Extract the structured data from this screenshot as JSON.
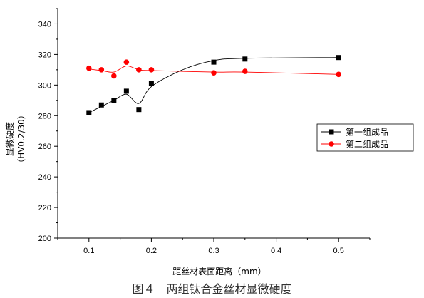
{
  "chart_data": {
    "type": "line",
    "xlabel": "距丝材表面距离（mm）",
    "ylabel_line1": "显微硬度",
    "ylabel_line2": "（HV0.2/30）",
    "xlim": [
      0.05,
      0.55
    ],
    "ylim": [
      200,
      350
    ],
    "x_ticks": [
      0.1,
      0.2,
      0.3,
      0.4,
      0.5
    ],
    "x_tick_labels": [
      "0.1",
      "0.2",
      "0.3",
      "0.4",
      "0.5"
    ],
    "y_ticks": [
      200,
      220,
      240,
      260,
      280,
      300,
      320,
      340
    ],
    "y_tick_labels": [
      "200",
      "220",
      "240",
      "260",
      "280",
      "300",
      "320",
      "340"
    ],
    "legend_position": "right",
    "series": [
      {
        "name": "第一组成品",
        "color": "#000000",
        "marker": "square",
        "x": [
          0.1,
          0.12,
          0.14,
          0.16,
          0.18,
          0.2,
          0.3,
          0.35,
          0.5
        ],
        "y": [
          282,
          287,
          290,
          296,
          284,
          301,
          315,
          317,
          318
        ],
        "curve_x": [
          0.1,
          0.12,
          0.14,
          0.16,
          0.18,
          0.2,
          0.25,
          0.3,
          0.35,
          0.5
        ],
        "curve_y": [
          282,
          286,
          290,
          294,
          288,
          299,
          310,
          316,
          317.5,
          318
        ]
      },
      {
        "name": "第二组成品",
        "color": "#ff0000",
        "marker": "circle",
        "x": [
          0.1,
          0.12,
          0.14,
          0.16,
          0.18,
          0.2,
          0.3,
          0.35,
          0.5
        ],
        "y": [
          311,
          310,
          306,
          315,
          310,
          310,
          308,
          309,
          307
        ],
        "curve_x": [
          0.1,
          0.12,
          0.14,
          0.16,
          0.18,
          0.2,
          0.3,
          0.35,
          0.5
        ],
        "curve_y": [
          310.5,
          309.5,
          308.5,
          312.5,
          310,
          309.5,
          308.5,
          308.5,
          307
        ]
      }
    ]
  },
  "caption": "图４　两组钛合金丝材显微硬度"
}
